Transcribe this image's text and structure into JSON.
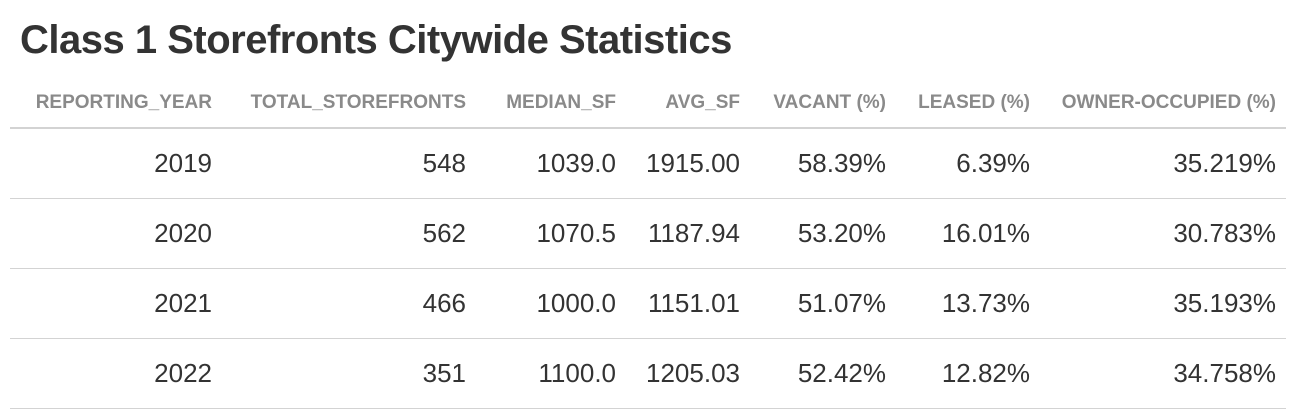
{
  "chart_data": {
    "type": "table",
    "title": "Class 1 Storefronts Citywide Statistics",
    "columns": [
      "REPORTING_YEAR",
      "TOTAL_STOREFRONTS",
      "MEDIAN_SF",
      "AVG_SF",
      "VACANT (%)",
      "LEASED (%)",
      "OWNER-OCCUPIED (%)"
    ],
    "rows": [
      [
        "2019",
        "548",
        "1039.0",
        "1915.00",
        "58.39%",
        "6.39%",
        "35.219%"
      ],
      [
        "2020",
        "562",
        "1070.5",
        "1187.94",
        "53.20%",
        "16.01%",
        "30.783%"
      ],
      [
        "2021",
        "466",
        "1000.0",
        "1151.01",
        "51.07%",
        "13.73%",
        "35.193%"
      ],
      [
        "2022",
        "351",
        "1100.0",
        "1205.03",
        "52.42%",
        "12.82%",
        "34.758%"
      ]
    ]
  },
  "colors": {
    "title_text": "#333333",
    "header_text": "#8a8a8a",
    "cell_text": "#333333",
    "rule": "#d3d3d3",
    "background": "#ffffff"
  }
}
